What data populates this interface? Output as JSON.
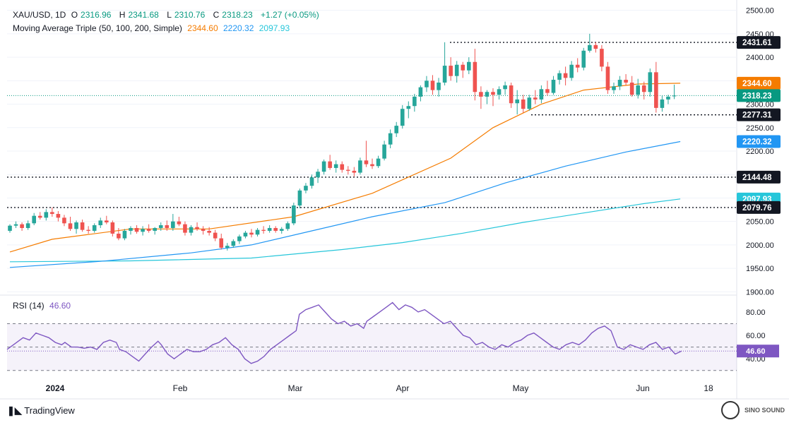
{
  "header": {
    "symbol": "XAU/USD, 1D",
    "open_label": "O",
    "open": "2316.96",
    "high_label": "H",
    "high": "2341.68",
    "low_label": "L",
    "low": "2310.76",
    "close_label": "C",
    "close": "2318.23",
    "change": "+1.27 (+0.05%)",
    "ma_label": "Moving Average Triple (50, 100, 200, Simple)",
    "ma50": "2344.60",
    "ma100": "2220.32",
    "ma200": "2097.93",
    "rsi_label": "RSI (14)",
    "rsi_value": "46.60"
  },
  "branding": {
    "tradingview": "TradingView",
    "logo_text_1": "SINO SOUND",
    "logo_text_2": "",
    "logo_icon": "sino-sound-logo-icon"
  },
  "colors": {
    "up": "#26a69a",
    "down": "#ef5350",
    "ma50": "#f57c00",
    "ma100": "#2196f3",
    "ma200": "#26c6da",
    "rsi": "#7e57c2"
  },
  "chart_data": [
    {
      "type": "candlestick",
      "y_ticks": [
        1900,
        1950,
        2000,
        2050,
        2100,
        2150,
        2200,
        2250,
        2300,
        2350,
        2400,
        2450,
        2500
      ],
      "ylim": [
        1893,
        2510
      ],
      "x_tick_labels": [
        "2024",
        "Feb",
        "Mar",
        "Apr",
        "May",
        "Jun",
        "18"
      ],
      "price_labels": [
        {
          "value": 2431.61,
          "text": "2431.61",
          "kind": "level"
        },
        {
          "value": 2344.6,
          "text": "2344.60",
          "kind": "ma50"
        },
        {
          "value": 2318.23,
          "text": "2318.23",
          "kind": "last"
        },
        {
          "value": 2277.31,
          "text": "2277.31",
          "kind": "level"
        },
        {
          "value": 2220.32,
          "text": "2220.32",
          "kind": "ma100"
        },
        {
          "value": 2144.48,
          "text": "2144.48",
          "kind": "level"
        },
        {
          "value": 2097.93,
          "text": "2097.93",
          "kind": "ma200"
        },
        {
          "value": 2079.76,
          "text": "2079.76",
          "kind": "level"
        }
      ],
      "horizontal_levels": [
        2431.61,
        2277.31,
        2144.48,
        2079.76
      ],
      "ohlc": [
        [
          2030,
          2044,
          2026,
          2041
        ],
        [
          2041,
          2050,
          2036,
          2044
        ],
        [
          2044,
          2048,
          2030,
          2036
        ],
        [
          2036,
          2052,
          2032,
          2046
        ],
        [
          2046,
          2068,
          2042,
          2062
        ],
        [
          2062,
          2070,
          2054,
          2058
        ],
        [
          2058,
          2076,
          2052,
          2070
        ],
        [
          2070,
          2080,
          2060,
          2066
        ],
        [
          2066,
          2072,
          2050,
          2058
        ],
        [
          2058,
          2064,
          2040,
          2046
        ],
        [
          2046,
          2060,
          2030,
          2034
        ],
        [
          2034,
          2052,
          2024,
          2048
        ],
        [
          2048,
          2054,
          2028,
          2032
        ],
        [
          2032,
          2040,
          2024,
          2030
        ],
        [
          2030,
          2046,
          2026,
          2042
        ],
        [
          2042,
          2058,
          2036,
          2052
        ],
        [
          2052,
          2062,
          2044,
          2048
        ],
        [
          2048,
          2052,
          2018,
          2024
        ],
        [
          2024,
          2036,
          2010,
          2014
        ],
        [
          2014,
          2034,
          2010,
          2030
        ],
        [
          2030,
          2040,
          2022,
          2036
        ],
        [
          2036,
          2042,
          2024,
          2028
        ],
        [
          2028,
          2040,
          2020,
          2034
        ],
        [
          2034,
          2044,
          2026,
          2030
        ],
        [
          2030,
          2038,
          2022,
          2036
        ],
        [
          2036,
          2048,
          2030,
          2042
        ],
        [
          2042,
          2052,
          2030,
          2036
        ],
        [
          2036,
          2066,
          2030,
          2050
        ],
        [
          2050,
          2060,
          2040,
          2044
        ],
        [
          2044,
          2050,
          2020,
          2026
        ],
        [
          2026,
          2042,
          2020,
          2038
        ],
        [
          2038,
          2048,
          2030,
          2034
        ],
        [
          2034,
          2040,
          2022,
          2030
        ],
        [
          2030,
          2038,
          2020,
          2026
        ],
        [
          2026,
          2032,
          2008,
          2014
        ],
        [
          2014,
          2024,
          1990,
          1994
        ],
        [
          1994,
          2004,
          1988,
          1998
        ],
        [
          1998,
          2012,
          1994,
          2008
        ],
        [
          2008,
          2022,
          2002,
          2018
        ],
        [
          2018,
          2030,
          2014,
          2026
        ],
        [
          2026,
          2034,
          2016,
          2022
        ],
        [
          2022,
          2036,
          2018,
          2032
        ],
        [
          2032,
          2040,
          2024,
          2030
        ],
        [
          2030,
          2042,
          2026,
          2036
        ],
        [
          2036,
          2040,
          2026,
          2030
        ],
        [
          2030,
          2038,
          2024,
          2034
        ],
        [
          2034,
          2050,
          2030,
          2046
        ],
        [
          2046,
          2090,
          2042,
          2084
        ],
        [
          2084,
          2120,
          2078,
          2116
        ],
        [
          2116,
          2132,
          2110,
          2126
        ],
        [
          2126,
          2150,
          2120,
          2144
        ],
        [
          2144,
          2162,
          2132,
          2156
        ],
        [
          2156,
          2182,
          2150,
          2178
        ],
        [
          2178,
          2192,
          2160,
          2164
        ],
        [
          2164,
          2180,
          2154,
          2172
        ],
        [
          2172,
          2178,
          2154,
          2160
        ],
        [
          2160,
          2168,
          2150,
          2158
        ],
        [
          2158,
          2166,
          2146,
          2154
        ],
        [
          2154,
          2186,
          2150,
          2180
        ],
        [
          2180,
          2222,
          2166,
          2172
        ],
        [
          2172,
          2184,
          2162,
          2168
        ],
        [
          2168,
          2190,
          2164,
          2184
        ],
        [
          2184,
          2222,
          2180,
          2214
        ],
        [
          2214,
          2246,
          2206,
          2238
        ],
        [
          2238,
          2262,
          2230,
          2254
        ],
        [
          2254,
          2298,
          2248,
          2290
        ],
        [
          2290,
          2306,
          2270,
          2296
        ],
        [
          2296,
          2322,
          2284,
          2316
        ],
        [
          2316,
          2340,
          2306,
          2336
        ],
        [
          2336,
          2360,
          2326,
          2350
        ],
        [
          2350,
          2362,
          2320,
          2330
        ],
        [
          2330,
          2356,
          2316,
          2346
        ],
        [
          2346,
          2432,
          2340,
          2382
        ],
        [
          2382,
          2400,
          2350,
          2360
        ],
        [
          2360,
          2392,
          2346,
          2384
        ],
        [
          2384,
          2390,
          2356,
          2372
        ],
        [
          2372,
          2400,
          2364,
          2390
        ],
        [
          2390,
          2418,
          2308,
          2326
        ],
        [
          2326,
          2338,
          2290,
          2316
        ],
        [
          2316,
          2330,
          2300,
          2326
        ],
        [
          2326,
          2334,
          2296,
          2320
        ],
        [
          2320,
          2338,
          2310,
          2332
        ],
        [
          2332,
          2348,
          2320,
          2340
        ],
        [
          2340,
          2346,
          2292,
          2302
        ],
        [
          2302,
          2330,
          2278,
          2310
        ],
        [
          2310,
          2320,
          2282,
          2290
        ],
        [
          2290,
          2320,
          2286,
          2314
        ],
        [
          2314,
          2330,
          2300,
          2310
        ],
        [
          2310,
          2340,
          2302,
          2332
        ],
        [
          2332,
          2350,
          2318,
          2324
        ],
        [
          2324,
          2360,
          2320,
          2352
        ],
        [
          2352,
          2372,
          2342,
          2366
        ],
        [
          2366,
          2380,
          2340,
          2356
        ],
        [
          2356,
          2392,
          2350,
          2384
        ],
        [
          2384,
          2398,
          2368,
          2378
        ],
        [
          2378,
          2420,
          2372,
          2414
        ],
        [
          2414,
          2450,
          2410,
          2426
        ],
        [
          2426,
          2432,
          2410,
          2418
        ],
        [
          2418,
          2426,
          2370,
          2380
        ],
        [
          2380,
          2390,
          2322,
          2330
        ],
        [
          2330,
          2346,
          2322,
          2338
        ],
        [
          2338,
          2360,
          2330,
          2352
        ],
        [
          2352,
          2364,
          2340,
          2346
        ],
        [
          2346,
          2360,
          2316,
          2320
        ],
        [
          2320,
          2354,
          2312,
          2340
        ],
        [
          2340,
          2348,
          2310,
          2326
        ],
        [
          2326,
          2376,
          2316,
          2368
        ],
        [
          2368,
          2390,
          2282,
          2292
        ],
        [
          2292,
          2318,
          2284,
          2310
        ],
        [
          2310,
          2320,
          2300,
          2316
        ],
        [
          2316.96,
          2341.68,
          2310.76,
          2318.23
        ]
      ],
      "ma50": [
        [
          0,
          1985
        ],
        [
          7,
          2012
        ],
        [
          20,
          2034
        ],
        [
          33,
          2034
        ],
        [
          47,
          2060
        ],
        [
          60,
          2110
        ],
        [
          73,
          2185
        ],
        [
          80,
          2250
        ],
        [
          88,
          2300
        ],
        [
          95,
          2330
        ],
        [
          104,
          2343
        ],
        [
          111,
          2344.6
        ]
      ],
      "ma100": [
        [
          0,
          1952
        ],
        [
          15,
          1965
        ],
        [
          30,
          1983
        ],
        [
          40,
          2000
        ],
        [
          50,
          2030
        ],
        [
          60,
          2060
        ],
        [
          72,
          2090
        ],
        [
          82,
          2132
        ],
        [
          92,
          2168
        ],
        [
          102,
          2198
        ],
        [
          111,
          2220.32
        ]
      ],
      "ma200": [
        [
          0,
          1964
        ],
        [
          20,
          1966
        ],
        [
          40,
          1972
        ],
        [
          55,
          1990
        ],
        [
          65,
          2005
        ],
        [
          75,
          2025
        ],
        [
          85,
          2048
        ],
        [
          95,
          2068
        ],
        [
          105,
          2088
        ],
        [
          111,
          2097.93
        ]
      ]
    },
    {
      "type": "line",
      "name": "RSI (14)",
      "y_ticks": [
        40,
        60,
        80
      ],
      "ylim": [
        22,
        92
      ],
      "band": [
        30,
        70
      ],
      "mid": 50,
      "last": 46.6,
      "values": [
        [
          0,
          48
        ],
        [
          2,
          52
        ],
        [
          5,
          58
        ],
        [
          7,
          56
        ],
        [
          9,
          62
        ],
        [
          11,
          60
        ],
        [
          13,
          58
        ],
        [
          15,
          54
        ],
        [
          17,
          52
        ],
        [
          18,
          54
        ],
        [
          20,
          50
        ],
        [
          22,
          50
        ],
        [
          24,
          49
        ],
        [
          26,
          50
        ],
        [
          28,
          48
        ],
        [
          30,
          54
        ],
        [
          32,
          56
        ],
        [
          34,
          54
        ],
        [
          35,
          48
        ],
        [
          37,
          46
        ],
        [
          39,
          42
        ],
        [
          41,
          38
        ],
        [
          43,
          44
        ],
        [
          45,
          50
        ],
        [
          47,
          55
        ],
        [
          48,
          52
        ],
        [
          50,
          44
        ],
        [
          52,
          40
        ],
        [
          54,
          44
        ],
        [
          56,
          48
        ],
        [
          58,
          46
        ],
        [
          60,
          46
        ],
        [
          62,
          48
        ],
        [
          64,
          52
        ],
        [
          66,
          54
        ],
        [
          68,
          58
        ],
        [
          70,
          52
        ],
        [
          72,
          48
        ],
        [
          74,
          40
        ],
        [
          76,
          36
        ],
        [
          78,
          38
        ],
        [
          80,
          42
        ],
        [
          82,
          48
        ],
        [
          84,
          52
        ],
        [
          86,
          56
        ],
        [
          88,
          60
        ],
        [
          90,
          64
        ],
        [
          91,
          78
        ],
        [
          93,
          82
        ],
        [
          95,
          84
        ],
        [
          97,
          86
        ],
        [
          99,
          80
        ],
        [
          101,
          74
        ],
        [
          103,
          70
        ],
        [
          105,
          72
        ],
        [
          107,
          68
        ],
        [
          109,
          70
        ],
        [
          111,
          66
        ],
        [
          112,
          72
        ],
        [
          114,
          76
        ],
        [
          116,
          80
        ],
        [
          118,
          84
        ],
        [
          120,
          88
        ],
        [
          122,
          82
        ],
        [
          124,
          86
        ],
        [
          126,
          84
        ],
        [
          128,
          80
        ],
        [
          130,
          82
        ],
        [
          132,
          78
        ],
        [
          134,
          74
        ],
        [
          136,
          70
        ],
        [
          138,
          72
        ],
        [
          140,
          66
        ],
        [
          142,
          60
        ],
        [
          144,
          58
        ],
        [
          146,
          52
        ],
        [
          148,
          54
        ],
        [
          150,
          50
        ],
        [
          152,
          48
        ],
        [
          154,
          52
        ],
        [
          156,
          50
        ],
        [
          158,
          54
        ],
        [
          160,
          56
        ],
        [
          162,
          60
        ],
        [
          164,
          62
        ],
        [
          166,
          58
        ],
        [
          168,
          54
        ],
        [
          170,
          50
        ],
        [
          172,
          48
        ],
        [
          174,
          52
        ],
        [
          176,
          54
        ],
        [
          178,
          52
        ],
        [
          180,
          56
        ],
        [
          182,
          62
        ],
        [
          184,
          66
        ],
        [
          186,
          68
        ],
        [
          188,
          64
        ],
        [
          190,
          50
        ],
        [
          192,
          48
        ],
        [
          194,
          52
        ],
        [
          196,
          50
        ],
        [
          198,
          48
        ],
        [
          200,
          52
        ],
        [
          202,
          54
        ],
        [
          204,
          48
        ],
        [
          206,
          50
        ],
        [
          208,
          44
        ],
        [
          210,
          46.6
        ]
      ]
    }
  ]
}
